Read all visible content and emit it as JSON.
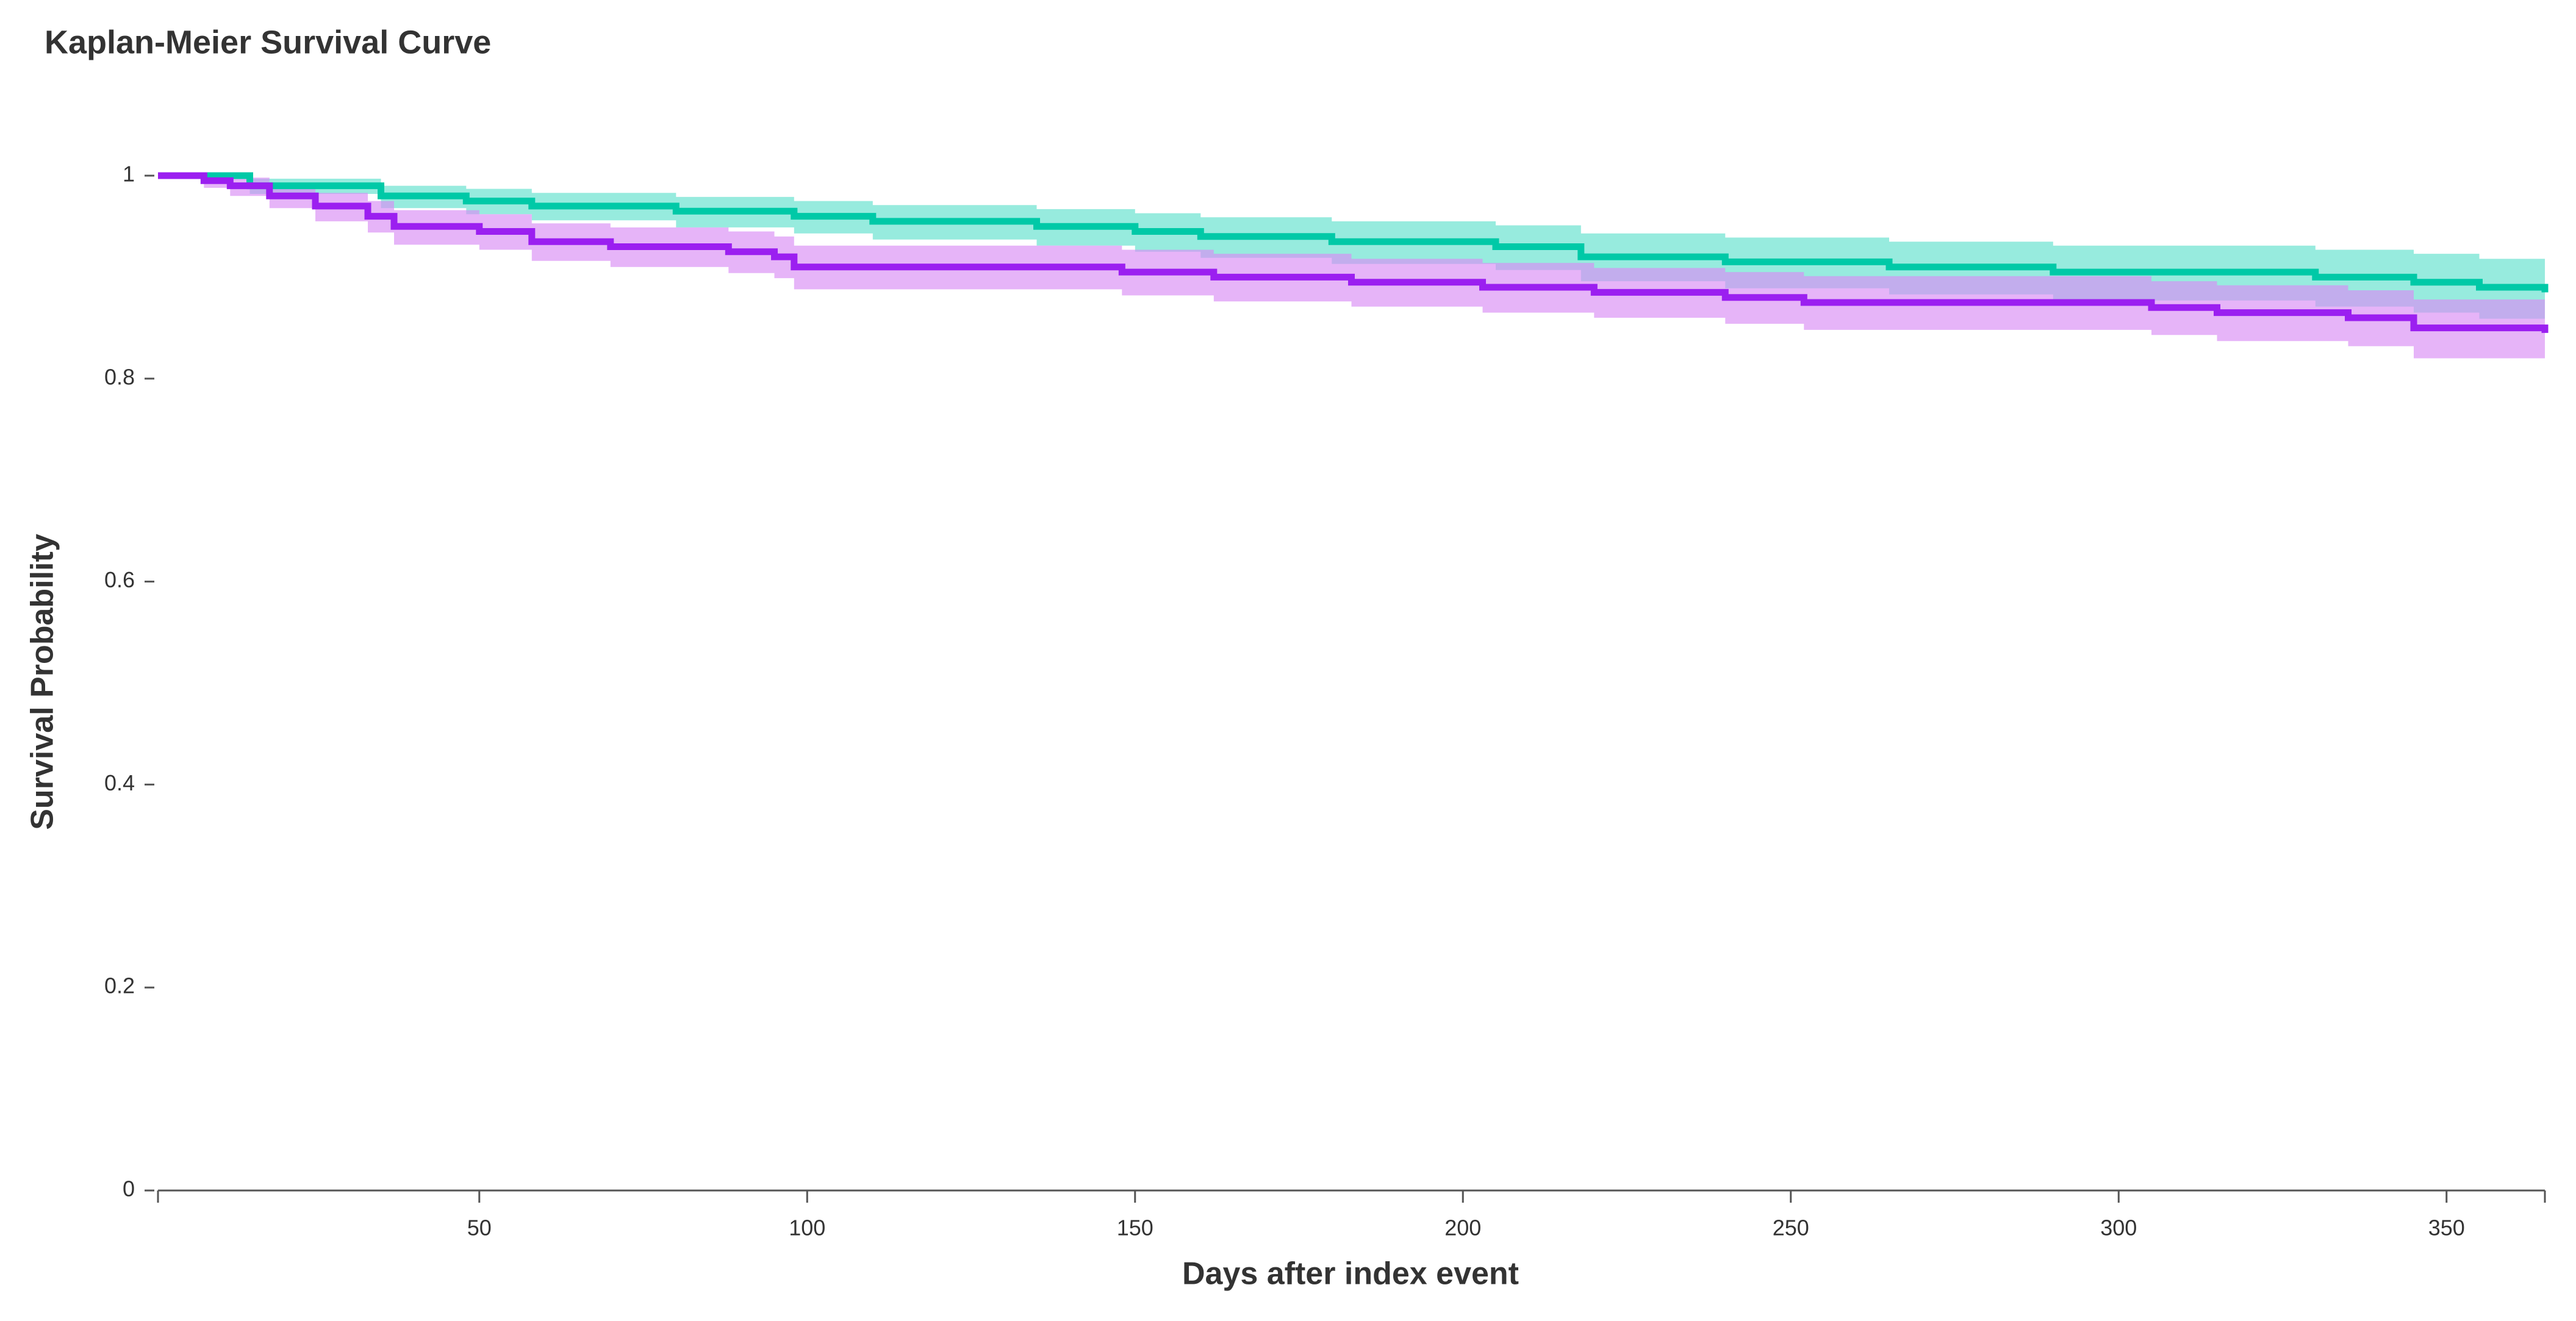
{
  "chart_data": {
    "type": "step",
    "title": "Kaplan-Meier Survival Curve",
    "xlabel": "Days after index event",
    "ylabel": "Survival Probability",
    "xlim": [
      1,
      365
    ],
    "ylim": [
      0,
      1
    ],
    "xticks": [
      50,
      100,
      150,
      200,
      250,
      300,
      350
    ],
    "yticks": [
      0,
      0.2,
      0.4,
      0.6,
      0.8,
      1
    ],
    "series": [
      {
        "color": "#00c9a7",
        "band_color": "#5fe0cc",
        "x": [
          1,
          15,
          35,
          48,
          58,
          80,
          98,
          110,
          135,
          150,
          160,
          180,
          205,
          218,
          240,
          265,
          290,
          330,
          345,
          355,
          365
        ],
        "values": [
          1,
          0.99,
          0.98,
          0.975,
          0.97,
          0.965,
          0.96,
          0.955,
          0.95,
          0.945,
          0.94,
          0.935,
          0.93,
          0.92,
          0.915,
          0.91,
          0.905,
          0.9,
          0.895,
          0.89,
          0.885
        ],
        "upper": [
          1,
          0.997,
          0.99,
          0.987,
          0.983,
          0.979,
          0.975,
          0.971,
          0.967,
          0.963,
          0.959,
          0.955,
          0.951,
          0.943,
          0.939,
          0.935,
          0.931,
          0.927,
          0.923,
          0.918,
          0.913
        ],
        "lower": [
          1,
          0.982,
          0.968,
          0.962,
          0.956,
          0.949,
          0.943,
          0.937,
          0.931,
          0.925,
          0.919,
          0.913,
          0.907,
          0.896,
          0.889,
          0.883,
          0.877,
          0.871,
          0.865,
          0.859,
          0.853
        ]
      },
      {
        "color": "#9b1ff0",
        "band_color": "#d98cf5",
        "x": [
          1,
          8,
          12,
          18,
          25,
          33,
          37,
          50,
          58,
          70,
          88,
          95,
          98,
          148,
          162,
          183,
          203,
          220,
          240,
          252,
          305,
          315,
          335,
          345,
          365
        ],
        "values": [
          1,
          0.995,
          0.99,
          0.98,
          0.97,
          0.96,
          0.95,
          0.945,
          0.935,
          0.93,
          0.925,
          0.92,
          0.91,
          0.905,
          0.9,
          0.895,
          0.89,
          0.885,
          0.88,
          0.875,
          0.87,
          0.865,
          0.86,
          0.85,
          0.845
        ],
        "upper": [
          1,
          1,
          0.998,
          0.99,
          0.983,
          0.975,
          0.966,
          0.962,
          0.953,
          0.949,
          0.945,
          0.94,
          0.931,
          0.927,
          0.923,
          0.918,
          0.914,
          0.909,
          0.905,
          0.901,
          0.896,
          0.892,
          0.887,
          0.878,
          0.874
        ],
        "lower": [
          1,
          0.988,
          0.98,
          0.968,
          0.955,
          0.944,
          0.932,
          0.927,
          0.916,
          0.91,
          0.904,
          0.899,
          0.888,
          0.882,
          0.876,
          0.871,
          0.865,
          0.86,
          0.854,
          0.848,
          0.843,
          0.837,
          0.832,
          0.82,
          0.812
        ]
      }
    ]
  }
}
